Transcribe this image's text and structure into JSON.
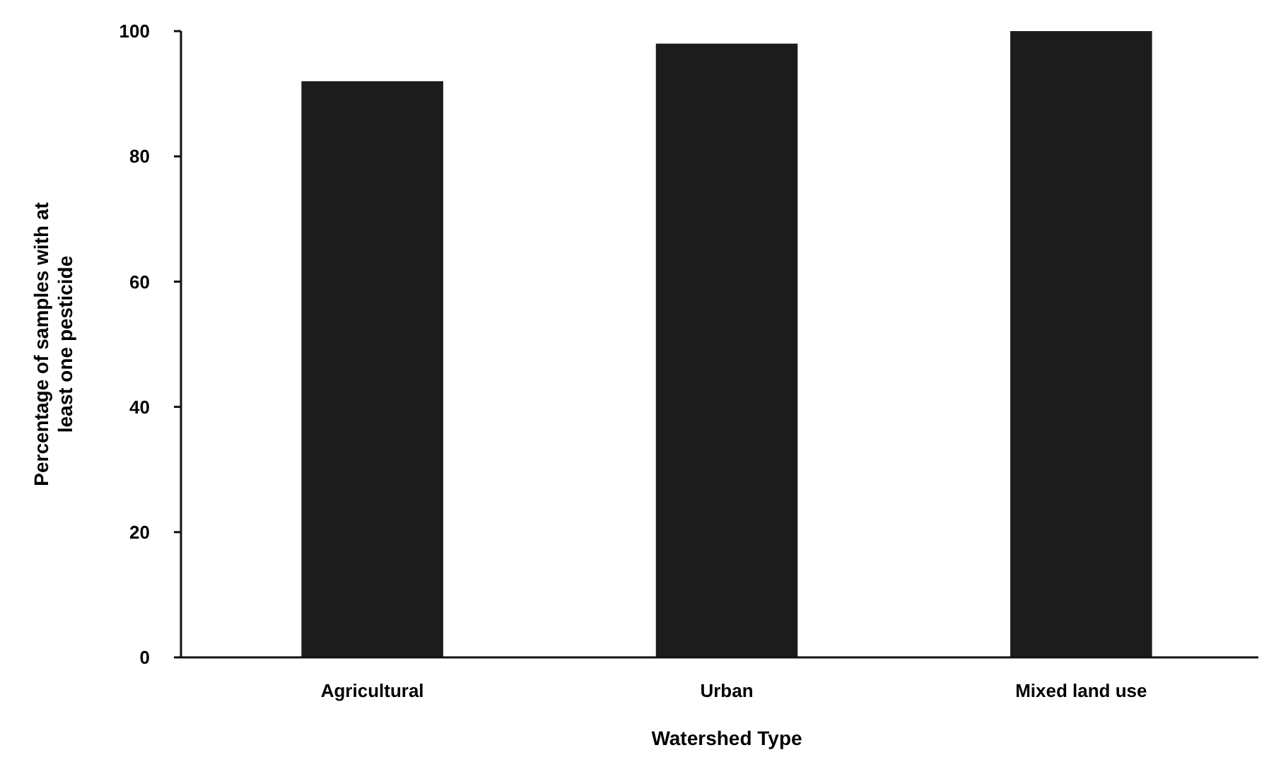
{
  "chart_data": {
    "type": "bar",
    "xlabel": "Watershed Type",
    "ylabel": "Percentage of samples with at least one pesticide",
    "categories": [
      "Agricultural",
      "Urban",
      "Mixed land use"
    ],
    "values": [
      92,
      98,
      100
    ],
    "color": "#1c1c1c",
    "ylim": [
      0,
      100
    ],
    "yticks": [
      0,
      20,
      40,
      60,
      80,
      100
    ],
    "grid": false
  }
}
